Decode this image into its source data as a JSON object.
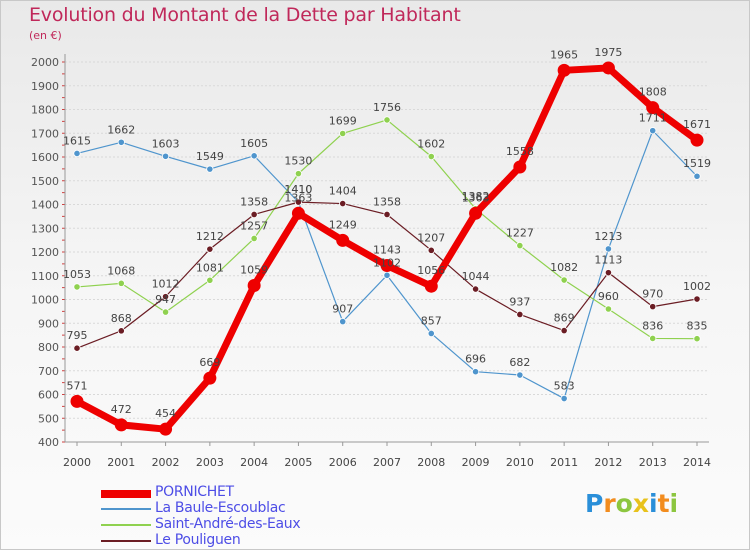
{
  "title": "Evolution du Montant de la Dette par Habitant",
  "subtitle": "(en €)",
  "chart_data": {
    "type": "line",
    "title": "Evolution du Montant de la Dette par Habitant",
    "subtitle": "(en €)",
    "ylabel": "",
    "xlabel": "",
    "ylim": [
      400,
      2000
    ],
    "yticks": [
      400,
      500,
      600,
      700,
      800,
      900,
      1000,
      1100,
      1200,
      1300,
      1400,
      1500,
      1600,
      1700,
      1800,
      1900,
      2000
    ],
    "grid": "horizontal",
    "x": [
      "2000",
      "2001",
      "2002",
      "2003",
      "2004",
      "2005",
      "2006",
      "2007",
      "2008",
      "2009",
      "2010",
      "2011",
      "2012",
      "2013",
      "2014"
    ],
    "series": [
      {
        "name": "La Baule-Escoublac",
        "color": "#4f95cd",
        "values": [
          1615,
          1662,
          1603,
          1549,
          1605,
          1410,
          907,
          1102,
          857,
          696,
          682,
          583,
          1213,
          1711,
          1519
        ],
        "labels": [
          "1615",
          "1662",
          "1603",
          "1549",
          "1605",
          "1410",
          "907",
          "1102",
          "857",
          "696",
          "682",
          "583",
          "1213",
          "1711",
          "1519"
        ]
      },
      {
        "name": "Saint-André-des-Eaux",
        "color": "#8fd14f",
        "values": [
          1053,
          1068,
          947,
          1081,
          1257,
          1530,
          1699,
          1756,
          1602,
          1382,
          1227,
          1082,
          960,
          836,
          835
        ],
        "labels": [
          "1053",
          "1068",
          "947",
          "1081",
          "1257",
          "1530",
          "1699",
          "1756",
          "1602",
          "1382",
          "1227",
          "1082",
          "960",
          "836",
          "835"
        ]
      },
      {
        "name": "Le Pouliguen",
        "color": "#6b1d24",
        "values": [
          795,
          868,
          1012,
          1212,
          1358,
          1410,
          1404,
          1358,
          1207,
          1044,
          937,
          869,
          1113,
          970,
          1002
        ],
        "labels": [
          "795",
          "868",
          "1012",
          "1212",
          "1358",
          "1410",
          "1404",
          "1358",
          "1207",
          "1044",
          "937",
          "869",
          "1113",
          "970",
          "1002"
        ]
      },
      {
        "name": "PORNICHET",
        "color": "#ee0000",
        "values": [
          571,
          472,
          454,
          669,
          1059,
          1363,
          1249,
          1143,
          1056,
          1363,
          1558,
          1965,
          1975,
          1808,
          1671
        ],
        "labels": [
          "571",
          "472",
          "454",
          "669",
          "1059",
          "1363",
          "1249",
          "1143",
          "1056",
          "1363",
          "1558",
          "1965",
          "1975",
          "1808",
          "1671"
        ]
      }
    ],
    "legend_order": [
      "PORNICHET",
      "La Baule-Escoublac",
      "Saint-André-des-Eaux",
      "Le Pouliguen"
    ],
    "legend_position": "bottom-left"
  },
  "legend": {
    "items": [
      {
        "name": "PORNICHET",
        "color": "#ee0000"
      },
      {
        "name": "La Baule-Escoublac",
        "color": "#4f95cd"
      },
      {
        "name": "Saint-André-des-Eaux",
        "color": "#8fd14f"
      },
      {
        "name": "Le Pouliguen",
        "color": "#6b1d24"
      }
    ]
  },
  "logo": {
    "letters": [
      "P",
      "r",
      "o",
      "x",
      "i",
      "t",
      "i"
    ],
    "colors": [
      "#2a8fd9",
      "#f28c1e",
      "#8cc63f",
      "#e8c21c",
      "#2a8fd9",
      "#f28c1e",
      "#8cc63f"
    ]
  }
}
